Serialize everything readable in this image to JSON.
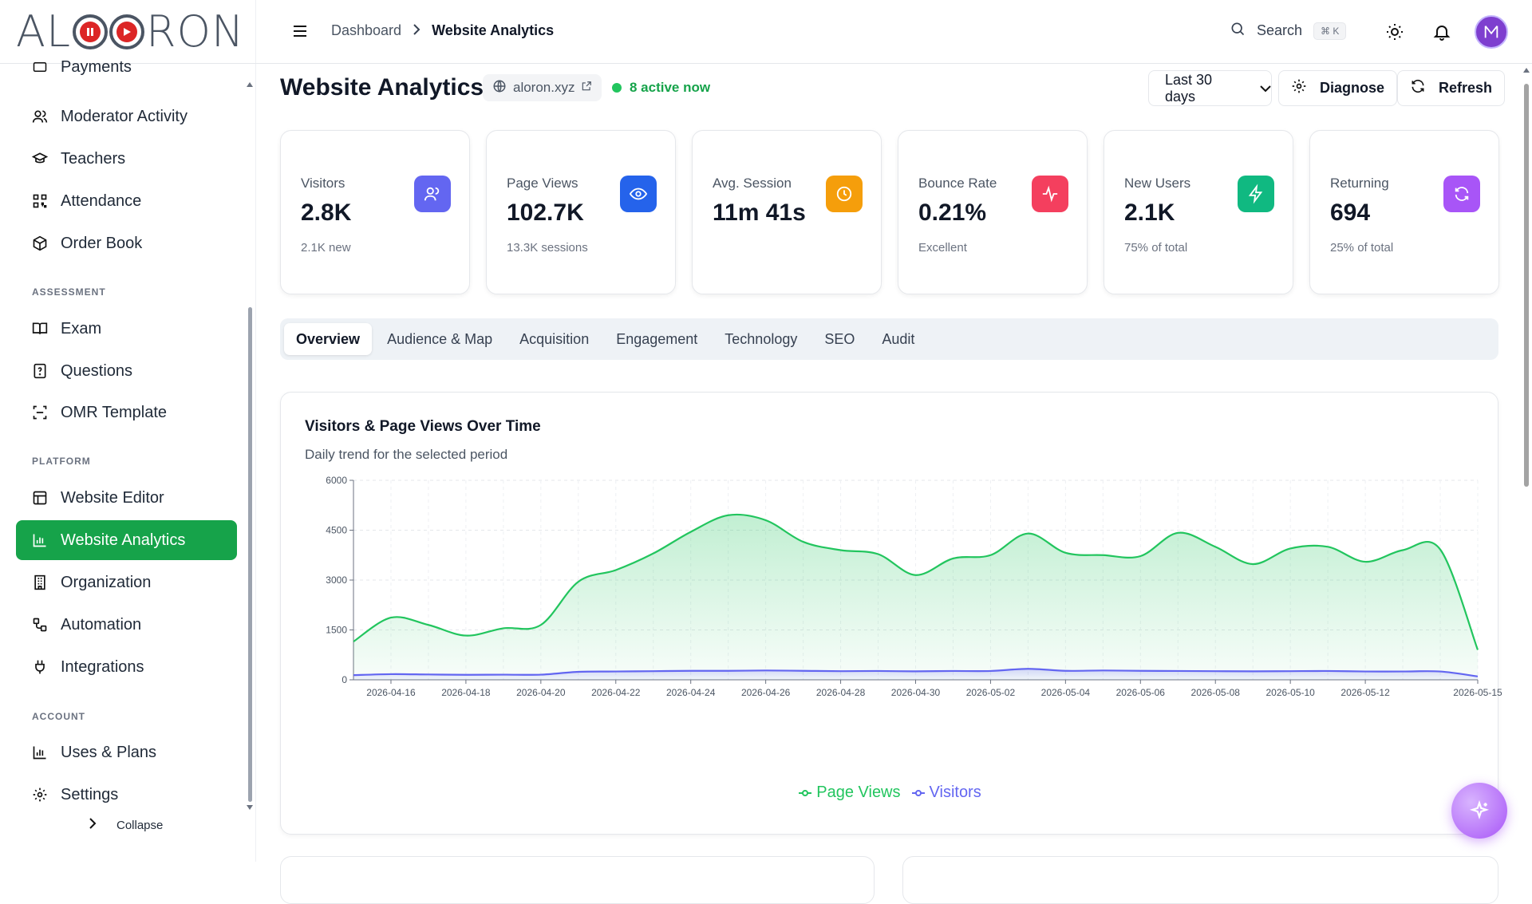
{
  "brand": {
    "logo_text_left": "AL",
    "logo_text_right": "RON"
  },
  "sidebar": {
    "partial_item": "Payments",
    "items_top": [
      {
        "label": "Moderator Activity",
        "icon": "users-icon"
      },
      {
        "label": "Teachers",
        "icon": "graduation-cap-icon"
      },
      {
        "label": "Attendance",
        "icon": "qr-code-icon"
      },
      {
        "label": "Order Book",
        "icon": "package-icon"
      }
    ],
    "section_assessment": "ASSESSMENT",
    "items_assessment": [
      {
        "label": "Exam",
        "icon": "book-open-icon"
      },
      {
        "label": "Questions",
        "icon": "file-question-icon"
      },
      {
        "label": "OMR Template",
        "icon": "scan-icon"
      }
    ],
    "section_platform": "PLATFORM",
    "items_platform": [
      {
        "label": "Website Editor",
        "icon": "layout-icon"
      },
      {
        "label": "Website Analytics",
        "icon": "bar-chart-icon",
        "active": true
      },
      {
        "label": "Organization",
        "icon": "building-icon"
      },
      {
        "label": "Automation",
        "icon": "workflow-icon"
      },
      {
        "label": "Integrations",
        "icon": "plug-icon"
      }
    ],
    "section_account": "ACCOUNT",
    "items_account": [
      {
        "label": "Uses & Plans",
        "icon": "bar-chart-icon"
      },
      {
        "label": "Settings",
        "icon": "gear-icon"
      }
    ],
    "collapse_label": "Collapse"
  },
  "topbar": {
    "breadcrumb_parent": "Dashboard",
    "breadcrumb_current": "Website Analytics",
    "search_label": "Search",
    "search_shortcut": "⌘ K"
  },
  "header": {
    "title": "Website Analytics",
    "domain": "aloron.xyz",
    "active_now": "8 active now",
    "range": "Last 30 days",
    "diagnose_label": "Diagnose",
    "refresh_label": "Refresh"
  },
  "stats": [
    {
      "label": "Visitors",
      "value": "2.8K",
      "sub": "2.1K new",
      "color": "#6366f1",
      "icon": "users-icon"
    },
    {
      "label": "Page Views",
      "value": "102.7K",
      "sub": "13.3K sessions",
      "color": "#2563eb",
      "icon": "eye-icon"
    },
    {
      "label": "Avg. Session",
      "value": "11m 41s",
      "sub": "",
      "color": "#f59e0b",
      "icon": "clock-icon"
    },
    {
      "label": "Bounce Rate",
      "value": "0.21%",
      "sub": "Excellent",
      "color": "#f43f5e",
      "icon": "activity-icon"
    },
    {
      "label": "New Users",
      "value": "2.1K",
      "sub": "75% of total",
      "color": "#10b981",
      "icon": "zap-icon"
    },
    {
      "label": "Returning",
      "value": "694",
      "sub": "25% of total",
      "color": "#a855f7",
      "icon": "refresh-icon"
    }
  ],
  "tabs": [
    "Overview",
    "Audience & Map",
    "Acquisition",
    "Engagement",
    "Technology",
    "SEO",
    "Audit"
  ],
  "chart_data": {
    "type": "area",
    "title": "Visitors & Page Views Over Time",
    "subtitle": "Daily trend for the selected period",
    "ylim": [
      0,
      6000
    ],
    "yticks": [
      0,
      1500,
      3000,
      4500,
      6000
    ],
    "x": [
      "2026-04-15",
      "2026-04-16",
      "2026-04-17",
      "2026-04-18",
      "2026-04-19",
      "2026-04-20",
      "2026-04-21",
      "2026-04-22",
      "2026-04-23",
      "2026-04-24",
      "2026-04-25",
      "2026-04-26",
      "2026-04-27",
      "2026-04-28",
      "2026-04-29",
      "2026-04-30",
      "2026-05-01",
      "2026-05-02",
      "2026-05-03",
      "2026-05-04",
      "2026-05-05",
      "2026-05-06",
      "2026-05-07",
      "2026-05-08",
      "2026-05-09",
      "2026-05-10",
      "2026-05-11",
      "2026-05-12",
      "2026-05-13",
      "2026-05-14",
      "2026-05-15"
    ],
    "xticks": [
      "2026-04-16",
      "2026-04-18",
      "2026-04-20",
      "2026-04-22",
      "2026-04-24",
      "2026-04-26",
      "2026-04-28",
      "2026-04-30",
      "2026-05-02",
      "2026-05-04",
      "2026-05-06",
      "2026-05-08",
      "2026-05-10",
      "2026-05-12",
      "2026-05-15"
    ],
    "series": [
      {
        "name": "Page Views",
        "color": "#22c55e",
        "values": [
          1150,
          1870,
          1650,
          1330,
          1550,
          1650,
          2950,
          3300,
          3800,
          4450,
          4950,
          4800,
          4150,
          3900,
          3780,
          3150,
          3650,
          3750,
          4400,
          3820,
          3750,
          3720,
          4420,
          4000,
          3480,
          3950,
          4000,
          3550,
          3900,
          3920,
          900
        ]
      },
      {
        "name": "Visitors",
        "color": "#6366f1",
        "values": [
          140,
          170,
          160,
          150,
          155,
          155,
          240,
          250,
          260,
          270,
          270,
          280,
          270,
          260,
          265,
          255,
          265,
          265,
          330,
          270,
          280,
          270,
          265,
          260,
          255,
          260,
          265,
          250,
          250,
          250,
          100
        ]
      }
    ],
    "grid": true,
    "legend": "bottom-center"
  }
}
